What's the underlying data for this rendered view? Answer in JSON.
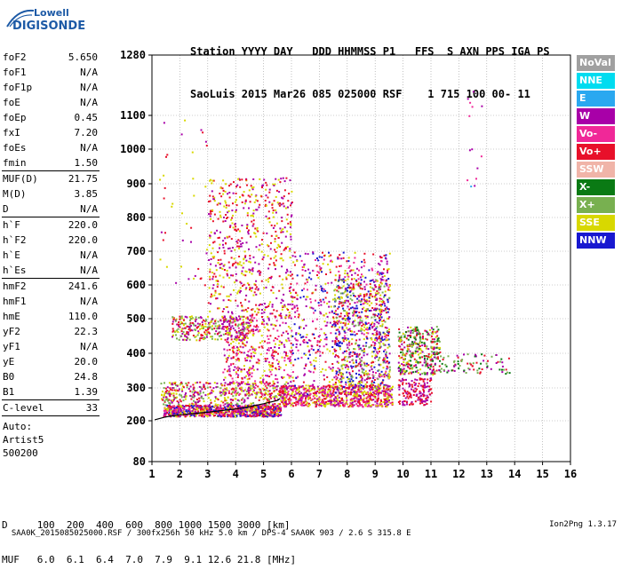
{
  "logo": {
    "line1": "Lowell",
    "line2": "DIGISONDE"
  },
  "header": {
    "line1": "Station YYYY DAY   DDD HHMMSS P1   FFS  S AXN PPS IGA PS",
    "line2": "SaoLuis 2015 Mar26 085 025000 RSF    1 715 100 00- 11"
  },
  "params": [
    {
      "k": "foF2",
      "v": "5.650"
    },
    {
      "k": "foF1",
      "v": "N/A"
    },
    {
      "k": "foF1p",
      "v": "N/A"
    },
    {
      "k": "foE",
      "v": "N/A"
    },
    {
      "k": "foEp",
      "v": "0.45"
    },
    {
      "k": "fxI",
      "v": "7.20"
    },
    {
      "k": "foEs",
      "v": "N/A"
    },
    {
      "k": "fmin",
      "v": "1.50"
    },
    {
      "sep": true
    },
    {
      "k": "MUF(D)",
      "v": "21.75"
    },
    {
      "k": "M(D)",
      "v": "3.85"
    },
    {
      "k": "D",
      "v": "N/A"
    },
    {
      "sep": true
    },
    {
      "k": "h`F",
      "v": "220.0"
    },
    {
      "k": "h`F2",
      "v": "220.0"
    },
    {
      "k": "h`E",
      "v": "N/A"
    },
    {
      "k": "h`Es",
      "v": "N/A"
    },
    {
      "sep": true
    },
    {
      "k": "hmF2",
      "v": "241.6"
    },
    {
      "k": "hmF1",
      "v": "N/A"
    },
    {
      "k": "hmE",
      "v": "110.0"
    },
    {
      "k": "yF2",
      "v": "22.3"
    },
    {
      "k": "yF1",
      "v": "N/A"
    },
    {
      "k": "yE",
      "v": "20.0"
    },
    {
      "k": "B0",
      "v": "24.8"
    },
    {
      "k": "B1",
      "v": "1.39"
    },
    {
      "sep": true
    },
    {
      "k": "C-level",
      "v": "33"
    },
    {
      "sep": true
    }
  ],
  "auto": [
    "Auto:",
    "Artist5",
    "500200"
  ],
  "legend": [
    {
      "label": "NoVal",
      "color": "#a0a0a0"
    },
    {
      "label": "NNE",
      "color": "#00dcf0"
    },
    {
      "label": "E",
      "color": "#2aa8f0"
    },
    {
      "label": "W",
      "color": "#a800a8"
    },
    {
      "label": "Vo-",
      "color": "#f02898"
    },
    {
      "label": "Vo+",
      "color": "#e8102a"
    },
    {
      "label": "SSW",
      "color": "#f0b4a8"
    },
    {
      "label": "X-",
      "color": "#0a7a14"
    },
    {
      "label": "X+",
      "color": "#78b050"
    },
    {
      "label": "SSE",
      "color": "#d8d800"
    },
    {
      "label": "NNW",
      "color": "#1818d0"
    }
  ],
  "dmuf": {
    "line1": "D     100  200  400  600  800 1000 1500 3000 [km]",
    "line2": "MUF   6.0  6.1  6.4  7.0  7.9  9.1 12.6 21.8 [MHz]"
  },
  "footer": {
    "left": "SAA0K_2015085025000.RSF / 300fx256h 50 kHz 5.0 km / DPS-4 SAA0K 903 / 2.6 S 315.8 E",
    "right": "Ion2Png 1.3.17"
  },
  "chart_data": {
    "type": "scatter",
    "x_ticks": [
      "1",
      "2",
      "3",
      "4",
      "5",
      "6",
      "7",
      "8",
      "9",
      "10",
      "11",
      "12",
      "13",
      "14",
      "15",
      "16"
    ],
    "y_ticks": [
      "80",
      "200",
      "300",
      "400",
      "500",
      "600",
      "700",
      "800",
      "900",
      "1000",
      "1100",
      "1280"
    ],
    "xlim": [
      1,
      16
    ],
    "ylim": [
      80,
      1280
    ],
    "grid": "dotted",
    "trace": {
      "color": "#000000",
      "x": [
        1.1,
        1.5,
        2.0,
        2.5,
        3.0,
        3.5,
        4.0,
        4.5,
        5.0,
        5.5,
        5.6
      ],
      "y": [
        203,
        212,
        218,
        222,
        226,
        231,
        236,
        243,
        252,
        262,
        268
      ]
    },
    "clusters": [
      {
        "x": [
          1.4,
          5.6
        ],
        "y": [
          215,
          250
        ],
        "n": 900,
        "colors": [
          "#e8102a",
          "#f02898",
          "#a800a8",
          "#1818d0",
          "#d8d800"
        ]
      },
      {
        "x": [
          5.6,
          9.6
        ],
        "y": [
          245,
          310
        ],
        "n": 700,
        "colors": [
          "#e8102a",
          "#f02898",
          "#a800a8",
          "#d8d800"
        ]
      },
      {
        "x": [
          1.3,
          5.8
        ],
        "y": [
          250,
          320
        ],
        "n": 400,
        "colors": [
          "#e8102a",
          "#d8d800",
          "#78b050",
          "#a800a8"
        ]
      },
      {
        "x": [
          3.5,
          6.0
        ],
        "y": [
          280,
          520
        ],
        "n": 500,
        "colors": [
          "#e8102a",
          "#f02898",
          "#a800a8",
          "#d8d800"
        ]
      },
      {
        "x": [
          3.0,
          6.0
        ],
        "y": [
          520,
          920
        ],
        "n": 600,
        "colors": [
          "#d8d800",
          "#a800a8",
          "#e8102a"
        ]
      },
      {
        "x": [
          1.7,
          4.5
        ],
        "y": [
          440,
          510
        ],
        "n": 300,
        "colors": [
          "#e8102a",
          "#a800a8",
          "#d8d800",
          "#78b050"
        ]
      },
      {
        "x": [
          6.0,
          9.5
        ],
        "y": [
          280,
          700
        ],
        "n": 700,
        "colors": [
          "#e8102a",
          "#a800a8",
          "#1818d0",
          "#f02898",
          "#d8d800"
        ]
      },
      {
        "x": [
          7.5,
          9.5
        ],
        "y": [
          300,
          620
        ],
        "n": 600,
        "colors": [
          "#e8102a",
          "#a800a8",
          "#1818d0",
          "#78b050",
          "#d8d800"
        ]
      },
      {
        "x": [
          9.8,
          11.3
        ],
        "y": [
          340,
          480
        ],
        "n": 350,
        "colors": [
          "#0a7a14",
          "#78b050",
          "#e8102a",
          "#d8d800",
          "#a800a8"
        ]
      },
      {
        "x": [
          9.8,
          11.0
        ],
        "y": [
          250,
          330
        ],
        "n": 150,
        "colors": [
          "#e8102a",
          "#a800a8"
        ]
      },
      {
        "x": [
          11.0,
          13.8
        ],
        "y": [
          340,
          400
        ],
        "n": 90,
        "colors": [
          "#78b050",
          "#0a7a14",
          "#e8102a",
          "#a800a8"
        ]
      },
      {
        "x": [
          12.2,
          12.8
        ],
        "y": [
          880,
          1180
        ],
        "n": 14,
        "colors": [
          "#a800a8",
          "#2aa8f0",
          "#f02898"
        ]
      },
      {
        "x": [
          1.2,
          3.0
        ],
        "y": [
          600,
          1100
        ],
        "n": 40,
        "colors": [
          "#a800a8",
          "#e8102a",
          "#d8d800"
        ]
      }
    ]
  }
}
